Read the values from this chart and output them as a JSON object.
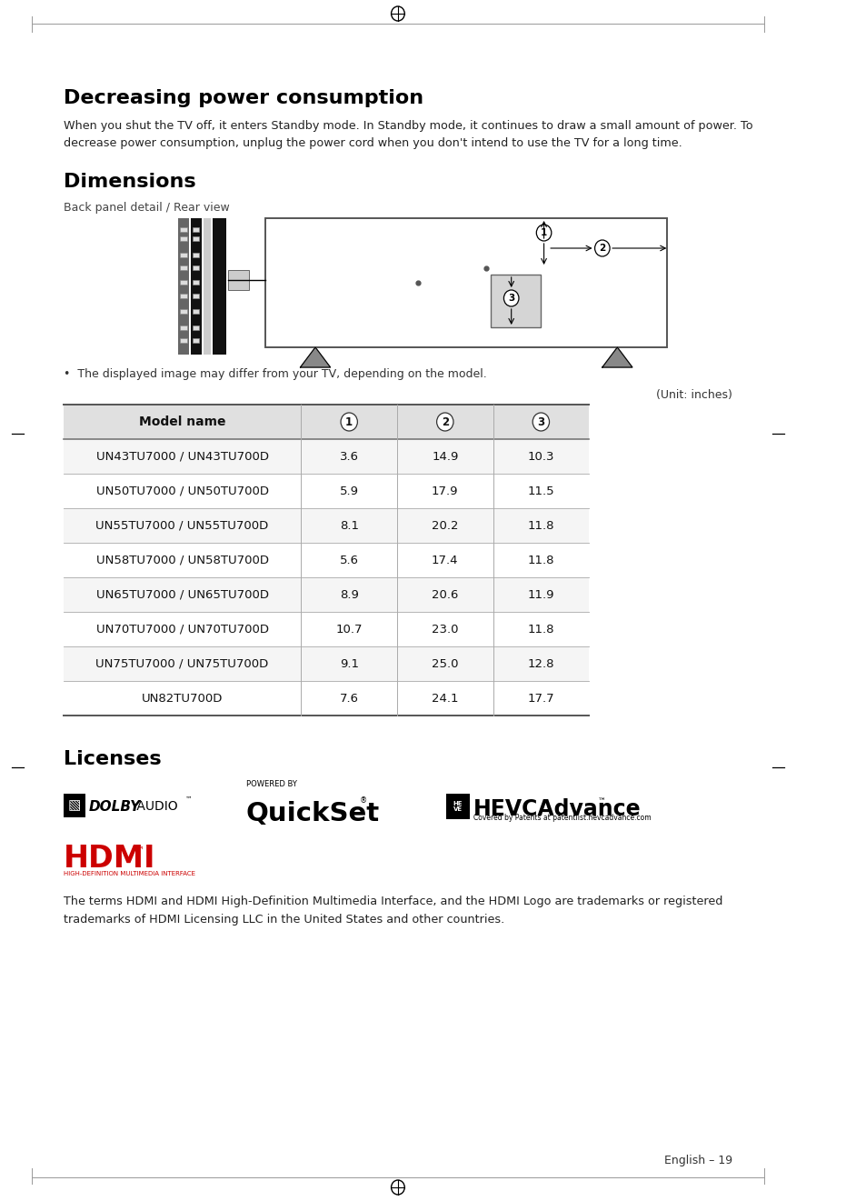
{
  "page_bg": "#ffffff",
  "title1": "Decreasing power consumption",
  "body1": "When you shut the TV off, it enters Standby mode. In Standby mode, it continues to draw a small amount of power. To\ndecrease power consumption, unplug the power cord when you don't intend to use the TV for a long time.",
  "title2": "Dimensions",
  "back_panel_label": "Back panel detail / Rear view",
  "bullet_note": "•  The displayed image may differ from your TV, depending on the model.",
  "unit_note": "(Unit: inches)",
  "table_header": [
    "Model name",
    "1",
    "2",
    "3"
  ],
  "table_rows": [
    [
      "UN43TU7000 / UN43TU700D",
      "3.6",
      "14.9",
      "10.3"
    ],
    [
      "UN50TU7000 / UN50TU700D",
      "5.9",
      "17.9",
      "11.5"
    ],
    [
      "UN55TU7000 / UN55TU700D",
      "8.1",
      "20.2",
      "11.8"
    ],
    [
      "UN58TU7000 / UN58TU700D",
      "5.6",
      "17.4",
      "11.8"
    ],
    [
      "UN65TU7000 / UN65TU700D",
      "8.9",
      "20.6",
      "11.9"
    ],
    [
      "UN70TU7000 / UN70TU700D",
      "10.7",
      "23.0",
      "11.8"
    ],
    [
      "UN75TU7000 / UN75TU700D",
      "9.1",
      "25.0",
      "12.8"
    ],
    [
      "UN82TU700D",
      "7.6",
      "24.1",
      "17.7"
    ]
  ],
  "title3": "Licenses",
  "hdmi_body": "The terms HDMI and HDMI High-Definition Multimedia Interface, and the HDMI Logo are trademarks or registered\ntrademarks of HDMI Licensing LLC in the United States and other countries.",
  "footer": "English – 19",
  "title_color": "#000000"
}
